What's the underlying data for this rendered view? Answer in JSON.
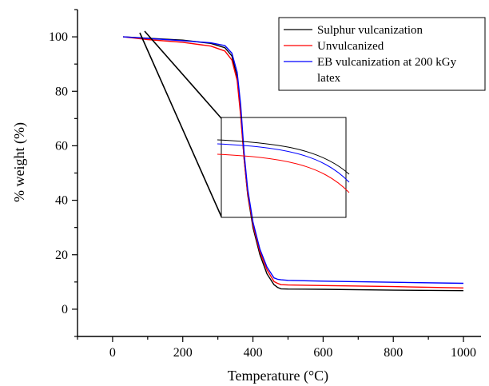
{
  "chart_data": {
    "type": "line",
    "title": "",
    "xlabel": "Temperature (°C)",
    "ylabel": "% weight (%)",
    "xlim": [
      -100,
      1050
    ],
    "ylim": [
      -10,
      110
    ],
    "xticks": [
      0,
      200,
      400,
      600,
      800,
      1000
    ],
    "yticks": [
      0,
      20,
      40,
      60,
      80,
      100
    ],
    "grid": false,
    "legend_position": "top-right",
    "series": [
      {
        "name": "Sulphur vulcanization",
        "color": "#000000",
        "x": [
          30,
          100,
          200,
          280,
          320,
          340,
          355,
          365,
          375,
          385,
          400,
          420,
          440,
          460,
          470,
          480,
          500,
          600,
          800,
          1000
        ],
        "y": [
          100,
          99.5,
          98.8,
          97.6,
          96.0,
          93.0,
          85.0,
          72.0,
          55.0,
          42.0,
          30.0,
          20.0,
          13.0,
          9.0,
          8.0,
          7.5,
          7.4,
          7.3,
          7.0,
          6.8
        ]
      },
      {
        "name": "Unvulcanized",
        "color": "#ff0000",
        "x": [
          30,
          100,
          200,
          280,
          320,
          340,
          355,
          365,
          375,
          385,
          400,
          420,
          440,
          460,
          470,
          480,
          500,
          600,
          800,
          1000
        ],
        "y": [
          100,
          99.0,
          98.0,
          96.6,
          94.8,
          91.5,
          84.0,
          71.0,
          55.0,
          42.5,
          31.0,
          21.0,
          14.5,
          10.2,
          9.5,
          9.0,
          8.9,
          8.7,
          8.3,
          7.8
        ]
      },
      {
        "name": "EB vulcanization at 200 kGy latex",
        "color": "#0000ff",
        "x": [
          30,
          100,
          200,
          280,
          320,
          340,
          355,
          365,
          375,
          385,
          400,
          420,
          440,
          460,
          470,
          480,
          500,
          600,
          800,
          1000
        ],
        "y": [
          100,
          99.4,
          98.6,
          97.8,
          96.8,
          94.0,
          87.0,
          75.0,
          57.0,
          44.0,
          32.0,
          22.0,
          15.5,
          11.5,
          11.0,
          10.8,
          10.6,
          10.3,
          9.9,
          9.5
        ]
      }
    ]
  }
}
